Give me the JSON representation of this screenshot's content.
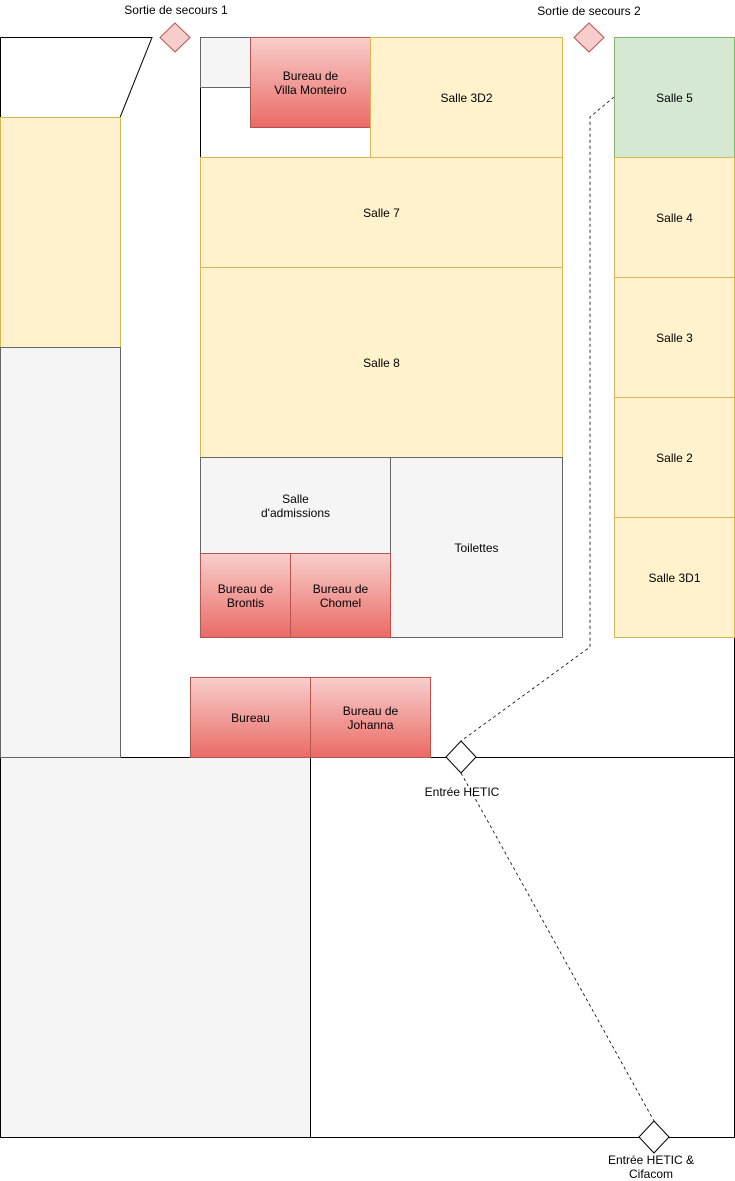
{
  "exits": {
    "emergency_1": "Sortie de secours 1",
    "emergency_2": "Sortie de secours 2",
    "hetic": "Entrée HETIC",
    "hetic_cifacom": "Entrée HETIC &\nCifacom"
  },
  "rooms": {
    "salle_3d2": "Salle 3D2",
    "salle_7": "Salle 7",
    "salle_8": "Salle 8",
    "salle_admissions": "Salle\nd'admissions",
    "toilettes": "Toilettes",
    "salle_5": "Salle 5",
    "salle_4": "Salle 4",
    "salle_3": "Salle 3",
    "salle_2": "Salle 2",
    "salle_3d1": "Salle 3D1"
  },
  "offices": {
    "villa_monteiro": "Bureau de\nVilla Monteiro",
    "brontis": "Bureau de\nBrontis",
    "chomel": "Bureau de\nChomel",
    "bureau": "Bureau",
    "johanna": "Bureau de\nJohanna"
  },
  "colors": {
    "classroom_fill": "#fff2cc",
    "classroom_stroke": "#d6b656",
    "green_room_fill": "#d5e8d4",
    "office_fill_top": "#f8cecc",
    "office_fill_bottom": "#ea6b66",
    "emergency_exit_fill": "#f8cecc"
  }
}
